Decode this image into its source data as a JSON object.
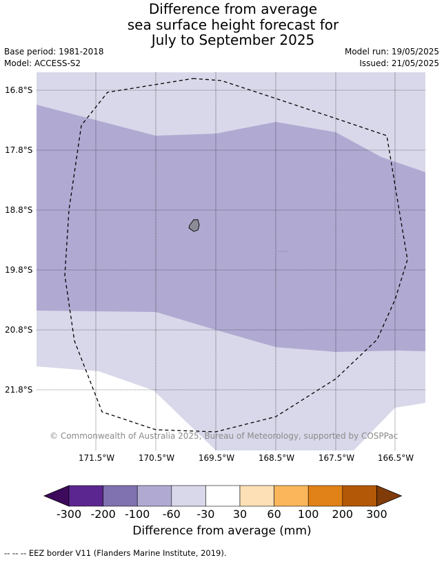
{
  "title": {
    "line1": "Difference from average",
    "line2": "sea surface height forecast for",
    "line3": "July to September 2025"
  },
  "meta": {
    "base_period": "Base period: 1981-2018",
    "model": "Model: ACCESS-S2",
    "model_run": "Model run: 19/05/2025",
    "issued": "Issued: 21/05/2025"
  },
  "map": {
    "lat_labels": [
      "16.8°S",
      "17.8°S",
      "18.8°S",
      "19.8°S",
      "20.8°S",
      "21.8°S"
    ],
    "lon_labels": [
      "171.5°W",
      "170.5°W",
      "169.5°W",
      "168.5°W",
      "167.5°W",
      "166.5°W"
    ],
    "copyright": "© Commonwealth of Australia 2025, Bureau of Meteorology, supported by COSPPac",
    "colors": {
      "band_light": "#d8d8ea",
      "band_mid": "#b0aad2",
      "island": "#8c8c96"
    }
  },
  "colorbar": {
    "ticks": [
      "-300",
      "-200",
      "-100",
      "-60",
      "-30",
      "30",
      "60",
      "100",
      "200",
      "300"
    ],
    "colors": [
      "#3d0a5c",
      "#5b2690",
      "#8072b0",
      "#b0aad2",
      "#d8d8ea",
      "#ffffff",
      "#fde0b5",
      "#fbb65c",
      "#e08217",
      "#b35806",
      "#7f3b08"
    ],
    "label": "Difference from average (mm)"
  },
  "legend_note": "--  --  -- EEZ border V11 (Flanders Marine Institute, 2019)."
}
